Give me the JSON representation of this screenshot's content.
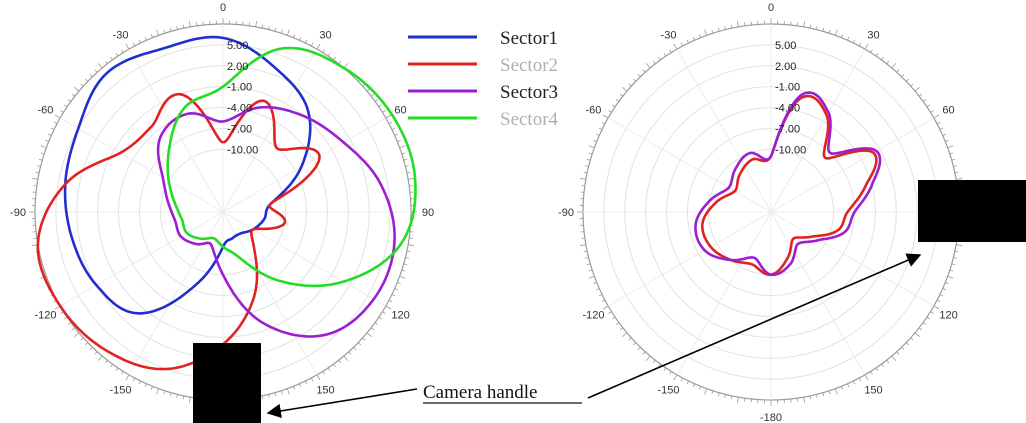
{
  "chart_data": [
    {
      "type": "polar-line",
      "title": "",
      "angle_ticks": [
        0,
        30,
        60,
        90,
        120,
        150,
        180,
        -150,
        -120,
        -90,
        -60,
        -30
      ],
      "angle_tick_labels": [
        "0",
        "30",
        "60",
        "90",
        "120",
        "150",
        "",
        "-150",
        "-120",
        "-90",
        "-60",
        "-30"
      ],
      "radial_tick_labels": [
        "5.00",
        "2.00",
        "-1.00",
        "-4.00",
        "-7.00",
        "-10.00"
      ],
      "radial_range": [
        -19,
        8
      ],
      "legend": {
        "placement": "top-right",
        "entries": [
          {
            "label": "Sector1",
            "color": "#1f2fd0"
          },
          {
            "label": "Sector2",
            "color": "#e0231f"
          },
          {
            "label": "Sector3",
            "color": "#9b1fd0"
          },
          {
            "label": "Sector4",
            "color": "#22dd22"
          }
        ]
      },
      "series": [
        {
          "name": "Sector1",
          "color": "#1f2fd0",
          "angles": [
            0,
            20,
            40,
            60,
            80,
            100,
            120,
            140,
            160,
            180,
            200,
            220,
            240,
            260,
            280,
            300,
            320,
            340
          ],
          "values": [
            6,
            3,
            0,
            -6,
            -12,
            -13,
            -14,
            -15,
            -15,
            -14,
            -8,
            0,
            2,
            3,
            4,
            5,
            7,
            6
          ]
        },
        {
          "name": "Sector2",
          "color": "#e0231f",
          "angles": [
            0,
            20,
            40,
            60,
            80,
            100,
            120,
            140,
            160,
            180,
            200,
            220,
            240,
            260,
            280,
            300,
            320,
            340
          ],
          "values": [
            -9,
            -2,
            -7,
            -3,
            -12,
            -10,
            -14,
            -12,
            -6,
            0,
            5,
            7,
            8,
            8,
            4,
            -2,
            -3,
            -1
          ]
        },
        {
          "name": "Sector3",
          "color": "#9b1fd0",
          "angles": [
            0,
            20,
            40,
            60,
            80,
            100,
            120,
            140,
            160,
            180,
            200,
            220,
            240,
            260,
            280,
            300,
            320,
            340
          ],
          "values": [
            -6,
            -3,
            -1,
            1,
            4,
            6,
            6,
            4,
            -2,
            -10,
            -14,
            -13,
            -12,
            -12,
            -11,
            -9,
            -5,
            -4
          ]
        },
        {
          "name": "Sector4",
          "color": "#22dd22",
          "angles": [
            0,
            20,
            40,
            60,
            80,
            100,
            120,
            140,
            160,
            180,
            200,
            220,
            240,
            260,
            280,
            300,
            320,
            340
          ],
          "values": [
            -1,
            6,
            8,
            9,
            9,
            7,
            1,
            -6,
            -12,
            -14,
            -15,
            -14,
            -13,
            -13,
            -12,
            -10,
            -7,
            -3
          ]
        }
      ]
    },
    {
      "type": "polar-line",
      "title": "",
      "angle_ticks": [
        0,
        30,
        60,
        90,
        120,
        150,
        180,
        -150,
        -120,
        -90,
        -60,
        -30
      ],
      "angle_tick_labels": [
        "0",
        "30",
        "60",
        "90",
        "120",
        "150",
        "-180",
        "-150",
        "-120",
        "-90",
        "-60",
        "-30"
      ],
      "radial_tick_labels": [
        "5.00",
        "2.00",
        "-1.00",
        "-4.00",
        "-7.00",
        "-10.00"
      ],
      "radial_range": [
        -19,
        8
      ],
      "series": [
        {
          "color": "#e0231f",
          "angles": [
            0,
            15,
            30,
            45,
            60,
            75,
            90,
            105,
            120,
            140,
            160,
            180,
            200,
            220,
            240,
            260,
            280,
            300,
            320,
            340
          ],
          "values": [
            -11,
            -2,
            -3,
            -8,
            -2,
            -5,
            -8,
            -9,
            -12,
            -14,
            -12,
            -10,
            -11,
            -10,
            -9,
            -9,
            -11,
            -13,
            -12,
            -11
          ]
        },
        {
          "color": "#9b1fd0",
          "angles": [
            0,
            15,
            30,
            45,
            60,
            75,
            90,
            105,
            120,
            140,
            160,
            180,
            200,
            220,
            240,
            260,
            280,
            300,
            320,
            340
          ],
          "values": [
            -11,
            -1.5,
            -2.5,
            -7,
            -1.5,
            -4,
            -7,
            -8,
            -11,
            -13,
            -11,
            -10,
            -12,
            -10,
            -8,
            -8,
            -10,
            -12,
            -11,
            -10
          ]
        }
      ]
    }
  ],
  "annotation": {
    "text": "Camera handle"
  }
}
